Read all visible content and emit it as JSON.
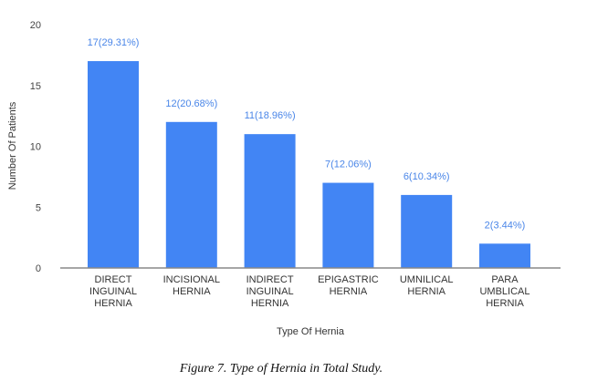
{
  "chart_data": {
    "type": "bar",
    "title": "",
    "xlabel": "Type Of Hernia",
    "ylabel": "Number Of Patients",
    "ylim": [
      0,
      20
    ],
    "yticks": [
      "0",
      "5",
      "10",
      "15",
      "20"
    ],
    "categories": [
      [
        "DIRECT",
        "INGUINAL",
        "HERNIA"
      ],
      [
        "INCISIONAL",
        "HERNIA"
      ],
      [
        "INDIRECT",
        "INGUINAL",
        "HERNIA"
      ],
      [
        "EPIGASTRIC",
        "HERNIA"
      ],
      [
        "UMNILICAL",
        "HERNIA"
      ],
      [
        "PARA",
        "UMBLICAL",
        "HERNIA"
      ]
    ],
    "values": [
      17,
      12,
      11,
      7,
      6,
      2
    ],
    "data_labels": [
      "17(29.31%)",
      "12(20.68%)",
      "11(18.96%)",
      "7(12.06%)",
      "6(10.34%)",
      "2(3.44%)"
    ],
    "bar_color": "#4285f4",
    "label_color": "#4a86e8",
    "grid": false,
    "legend": "none"
  },
  "caption": "Figure 7. Type of Hernia in Total Study."
}
